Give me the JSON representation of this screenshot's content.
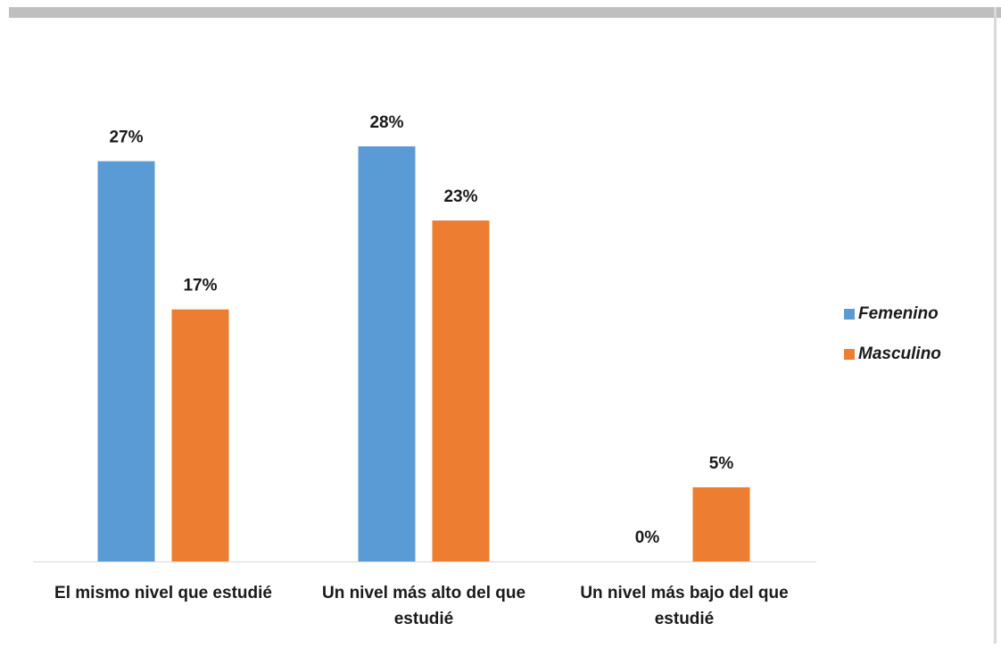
{
  "chart_data": {
    "type": "bar",
    "categories": [
      "El mismo nivel que estudié",
      "Un nivel más alto del que estudié",
      "Un nivel más bajo del que estudié"
    ],
    "series": [
      {
        "name": "Femenino",
        "color": "#5b9bd5",
        "values": [
          27,
          28,
          0
        ],
        "value_labels": [
          "27%",
          "28%",
          "0%"
        ]
      },
      {
        "name": "Masculino",
        "color": "#ed7d31",
        "values": [
          17,
          23,
          5
        ],
        "value_labels": [
          "17%",
          "23%",
          "5%"
        ]
      }
    ],
    "legend": "right"
  }
}
